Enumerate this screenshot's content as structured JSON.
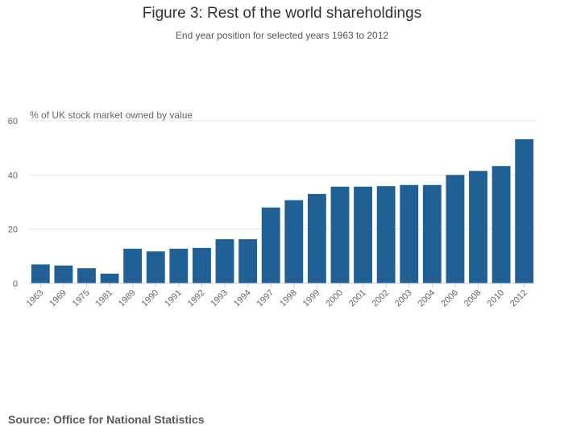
{
  "chart_data": {
    "type": "bar",
    "title": "Figure 3: Rest of the world shareholdings",
    "subtitle": "End year position for selected years 1963 to 2012",
    "ylabel": "% of UK stock market owned by value",
    "xlabel": "",
    "ylim": [
      0,
      60
    ],
    "yticks": [
      0,
      20,
      40,
      60
    ],
    "grid": true,
    "bar_color": "#206095",
    "categories": [
      "1963",
      "1969",
      "1975",
      "1981",
      "1989",
      "1990",
      "1991",
      "1992",
      "1993",
      "1994",
      "1997",
      "1998",
      "1999",
      "2000",
      "2001",
      "2002",
      "2003",
      "2004",
      "2006",
      "2008",
      "2010",
      "2012"
    ],
    "values": [
      7.0,
      6.6,
      5.6,
      3.6,
      12.8,
      11.8,
      12.8,
      13.1,
      16.3,
      16.3,
      28.0,
      30.7,
      33.0,
      35.7,
      35.7,
      35.9,
      36.3,
      36.3,
      40.0,
      41.5,
      43.3,
      53.2
    ]
  },
  "footer": {
    "source": "Source: Office for National Statistics"
  }
}
